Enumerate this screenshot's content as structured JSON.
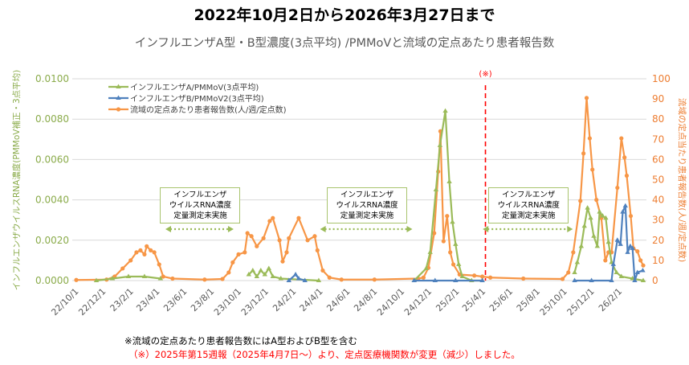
{
  "title": "2022年10月2日から2026年3月27日まで",
  "chart_data": {
    "type": "line",
    "title": "インフルエンザA型・B型濃度(3点平均) /PMMoVと流域の定点あたり患者報告数",
    "ylabel": "インフルエンザウイルスRNA濃度(PMMoV補正・3点平均)",
    "y2label": "流域の定点当たり患者報告数(人/週/定点数)",
    "xlim": [
      "2022-10-02",
      "2026-03-27"
    ],
    "ylim": [
      0,
      0.01
    ],
    "y2lim": [
      0,
      100
    ],
    "yticks": [
      "0.0000",
      "0.0020",
      "0.0040",
      "0.0060",
      "0.0080",
      "0.0100"
    ],
    "y2ticks": [
      "0",
      "10",
      "20",
      "30",
      "40",
      "50",
      "60",
      "70",
      "80",
      "90",
      "100"
    ],
    "xticks": [
      "22/10/1",
      "22/12/1",
      "23/2/1",
      "23/4/1",
      "23/6/1",
      "23/8/1",
      "23/10/1",
      "23/12/1",
      "24/2/1",
      "24/4/1",
      "24/6/1",
      "24/8/1",
      "24/10/1",
      "24/12/1",
      "25/2/1",
      "25/4/1",
      "25/6/1",
      "25/8/1",
      "25/10/1",
      "25/12/1",
      "26/2/1"
    ],
    "xtick_dates": [
      "2022-10-01",
      "2022-12-01",
      "2023-02-01",
      "2023-04-01",
      "2023-06-01",
      "2023-08-01",
      "2023-10-01",
      "2023-12-01",
      "2024-02-01",
      "2024-04-01",
      "2024-06-01",
      "2024-08-01",
      "2024-10-01",
      "2024-12-01",
      "2025-02-01",
      "2025-04-01",
      "2025-06-01",
      "2025-08-01",
      "2025-10-01",
      "2025-12-01",
      "2026-02-01"
    ],
    "grid": true,
    "legend_placement": "top-left",
    "series": [
      {
        "name": "インフルエンザA/PMMoV(3点平均)",
        "axis": "left",
        "color": "#9bbb59",
        "marker": "triangle",
        "segments": [
          [
            [
              "2022-11-16",
              0.0
            ],
            [
              "2022-12-22",
              0.0001
            ],
            [
              "2023-01-27",
              0.0002
            ],
            [
              "2023-03-04",
              0.0002
            ],
            [
              "2023-04-09",
              0.0001
            ]
          ],
          [
            [
              "2023-10-24",
              0.0003
            ],
            [
              "2023-11-02",
              0.0005
            ],
            [
              "2023-11-11",
              0.0002
            ],
            [
              "2023-11-20",
              0.0005
            ],
            [
              "2023-11-29",
              0.0003
            ],
            [
              "2023-12-08",
              0.0006
            ],
            [
              "2023-12-17",
              0.0002
            ],
            [
              "2024-01-04",
              0.0001
            ],
            [
              "2024-03-29",
              0.0
            ]
          ],
          [
            [
              "2024-10-29",
              0.0
            ],
            [
              "2024-11-25",
              0.0006
            ],
            [
              "2024-12-04",
              0.0014
            ],
            [
              "2024-12-17",
              0.0045
            ],
            [
              "2024-12-26",
              0.0067
            ],
            [
              "2025-01-07",
              0.0084
            ],
            [
              "2025-01-16",
              0.0049
            ],
            [
              "2025-01-23",
              0.0029
            ],
            [
              "2025-01-30",
              0.0018
            ],
            [
              "2025-02-06",
              0.0008
            ],
            [
              "2025-02-14",
              0.0002
            ],
            [
              "2025-03-07",
              0.0
            ],
            [
              "2025-03-31",
              0.0
            ]
          ],
          [
            [
              "2025-10-24",
              0.0004
            ],
            [
              "2025-10-30",
              0.0009
            ],
            [
              "2025-11-08",
              0.0017
            ],
            [
              "2025-11-15",
              0.0027
            ],
            [
              "2025-11-22",
              0.0036
            ],
            [
              "2025-11-29",
              0.0031
            ],
            [
              "2025-12-06",
              0.0022
            ],
            [
              "2025-12-14",
              0.0017
            ],
            [
              "2025-12-19",
              0.0034
            ],
            [
              "2025-12-26",
              0.0032
            ],
            [
              "2026-01-02",
              0.0031
            ],
            [
              "2026-01-08",
              0.0019
            ],
            [
              "2026-01-15",
              0.0009
            ],
            [
              "2026-01-26",
              0.0004
            ],
            [
              "2026-02-06",
              0.0002
            ],
            [
              "2026-03-03",
              0.0001
            ],
            [
              "2026-03-27",
              0.0
            ]
          ]
        ]
      },
      {
        "name": "インフルエンザB/PMMoV2(3点平均)",
        "axis": "left",
        "color": "#4f81bd",
        "marker": "triangle",
        "segments": [
          [
            [
              "2024-01-22",
              0.0
            ],
            [
              "2024-02-06",
              0.0003
            ],
            [
              "2024-02-13",
              0.0001
            ],
            [
              "2024-02-27",
              0.0
            ]
          ],
          [
            [
              "2024-10-29",
              0.0
            ],
            [
              "2024-12-15",
              0.0
            ],
            [
              "2025-01-30",
              0.0
            ],
            [
              "2025-03-31",
              0.0
            ]
          ],
          [
            [
              "2025-10-24",
              0.0
            ],
            [
              "2025-12-01",
              0.0
            ],
            [
              "2026-01-15",
              0.0
            ],
            [
              "2026-01-19",
              0.0008
            ],
            [
              "2026-01-28",
              0.002
            ],
            [
              "2026-02-04",
              0.0018
            ],
            [
              "2026-02-09",
              0.0034
            ],
            [
              "2026-02-15",
              0.0037
            ],
            [
              "2026-02-20",
              0.0014
            ],
            [
              "2026-02-26",
              0.0017
            ],
            [
              "2026-03-03",
              0.0016
            ],
            [
              "2026-03-08",
              0.0
            ],
            [
              "2026-03-14",
              0.0004
            ],
            [
              "2026-03-26",
              0.0005
            ]
          ]
        ]
      },
      {
        "name": "流域の定点あたり患者報告数(人/週/定点数)",
        "axis": "right",
        "color": "#f79646",
        "marker": "circle",
        "segments": [
          [
            [
              "2022-10-02",
              0.3
            ],
            [
              "2022-12-09",
              0.5
            ],
            [
              "2022-12-27",
              2
            ],
            [
              "2023-01-14",
              6
            ],
            [
              "2023-02-01",
              10
            ],
            [
              "2023-02-14",
              14
            ],
            [
              "2023-02-23",
              15
            ],
            [
              "2023-03-04",
              13
            ],
            [
              "2023-03-09",
              17
            ],
            [
              "2023-03-18",
              15
            ],
            [
              "2023-03-26",
              14
            ],
            [
              "2023-04-06",
              8
            ],
            [
              "2023-04-15",
              2
            ],
            [
              "2023-05-06",
              1
            ],
            [
              "2023-07-17",
              0.5
            ],
            [
              "2023-08-26",
              0.8
            ],
            [
              "2023-09-09",
              4
            ],
            [
              "2023-09-18",
              9
            ],
            [
              "2023-10-01",
              13
            ],
            [
              "2023-10-15",
              14
            ],
            [
              "2023-10-21",
              23.5
            ],
            [
              "2023-10-30",
              22
            ],
            [
              "2023-11-11",
              17
            ],
            [
              "2023-11-26",
              21
            ],
            [
              "2023-12-10",
              29.5
            ],
            [
              "2023-12-17",
              31
            ],
            [
              "2024-01-01",
              20
            ],
            [
              "2024-01-08",
              9.5
            ],
            [
              "2024-01-17",
              14
            ],
            [
              "2024-01-22",
              21
            ],
            [
              "2024-02-13",
              31
            ],
            [
              "2024-03-04",
              20
            ],
            [
              "2024-03-20",
              22
            ],
            [
              "2024-03-26",
              15
            ],
            [
              "2024-04-07",
              5
            ],
            [
              "2024-04-22",
              1.5
            ],
            [
              "2024-05-19",
              0.5
            ],
            [
              "2024-08-01",
              0.5
            ],
            [
              "2024-11-07",
              1
            ],
            [
              "2024-11-19",
              1.5
            ],
            [
              "2024-11-30",
              6.3
            ],
            [
              "2024-12-13",
              23.5
            ],
            [
              "2024-12-22",
              54
            ],
            [
              "2024-12-27",
              74
            ],
            [
              "2025-01-03",
              19.5
            ],
            [
              "2025-01-11",
              32
            ],
            [
              "2025-01-18",
              14
            ],
            [
              "2025-01-25",
              8
            ],
            [
              "2025-02-08",
              3
            ],
            [
              "2025-03-13",
              2.5
            ],
            [
              "2025-03-31",
              2
            ],
            [
              "2025-04-18",
              1.5
            ],
            [
              "2025-07-01",
              1
            ],
            [
              "2025-09-27",
              0.8
            ],
            [
              "2025-10-10",
              4
            ],
            [
              "2025-10-21",
              14
            ],
            [
              "2025-11-06",
              39.5
            ],
            [
              "2025-11-13",
              63
            ],
            [
              "2025-11-20",
              90.5
            ],
            [
              "2025-11-27",
              70.5
            ],
            [
              "2025-12-03",
              55
            ],
            [
              "2025-12-12",
              40
            ],
            [
              "2025-12-23",
              31
            ],
            [
              "2026-01-01",
              10
            ],
            [
              "2026-01-08",
              14
            ],
            [
              "2026-01-15",
              14
            ],
            [
              "2026-01-28",
              46
            ],
            [
              "2026-02-06",
              70.5
            ],
            [
              "2026-02-13",
              61
            ],
            [
              "2026-02-18",
              52
            ],
            [
              "2026-02-27",
              32
            ],
            [
              "2026-03-05",
              16
            ],
            [
              "2026-03-14",
              14.5
            ],
            [
              "2026-03-21",
              10
            ],
            [
              "2026-03-27",
              7.5
            ]
          ]
        ]
      }
    ],
    "vline": {
      "date": "2025-04-07",
      "label": "(※)",
      "color": "#ff0000"
    },
    "annotations": [
      {
        "text": [
          "インフルエンザ",
          "ウイルスRNA濃度",
          "定量測定未実施"
        ],
        "from": "2023-04-20",
        "to": "2023-09-20"
      },
      {
        "text": [
          "インフルエンザ",
          "ウイルスRNA濃度",
          "定量測定未実施"
        ],
        "from": "2024-04-01",
        "to": "2024-10-25"
      },
      {
        "text": [
          "インフルエンザ",
          "ウイルスRNA濃度",
          "定量測定未実施"
        ],
        "from": "2025-04-01",
        "to": "2025-10-20"
      }
    ]
  },
  "notes": {
    "note1": "※流域の定点あたり患者報告数にはA型およびB型を含む",
    "note2": "（※）2025年第15週報（2025年4月7日～）より、定点医療機関数が変更（減少）しました。"
  }
}
